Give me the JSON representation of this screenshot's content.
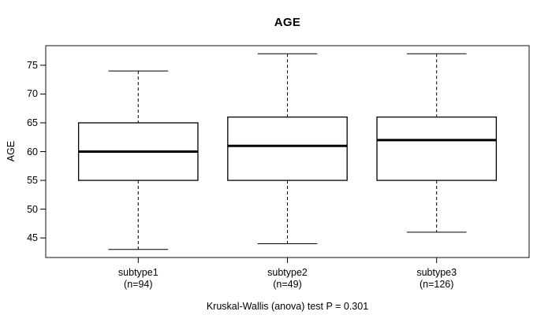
{
  "chart_data": {
    "type": "boxplot",
    "title": "AGE",
    "ylabel": "AGE",
    "ylim": [
      41.6,
      78.4
    ],
    "yticks": [
      45,
      50,
      55,
      60,
      65,
      70,
      75
    ],
    "grid": false,
    "annotation": "Kruskal-Wallis (anova) test P = 0.301",
    "groups": [
      {
        "label": "subtype1",
        "n": 94,
        "n_label": "(n=94)",
        "whisker_low": 43,
        "q1": 55,
        "median": 60,
        "q3": 65,
        "whisker_high": 74
      },
      {
        "label": "subtype2",
        "n": 49,
        "n_label": "(n=49)",
        "whisker_low": 44,
        "q1": 55,
        "median": 61,
        "q3": 66,
        "whisker_high": 77
      },
      {
        "label": "subtype3",
        "n": 126,
        "n_label": "(n=126)",
        "whisker_low": 46,
        "q1": 55,
        "median": 62,
        "q3": 66,
        "whisker_high": 77
      }
    ]
  }
}
